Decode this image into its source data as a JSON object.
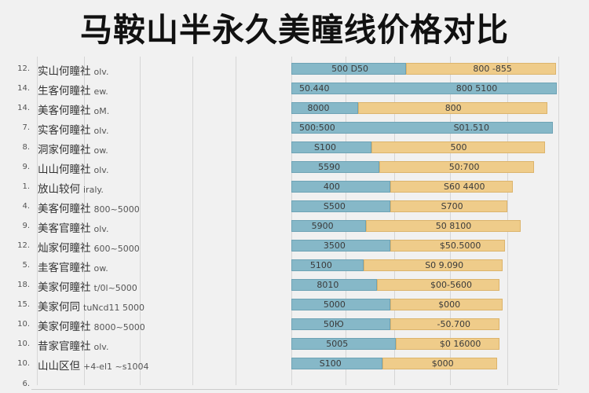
{
  "title": "马鞍山半永久美瞳线价格对比",
  "chart_data": {
    "type": "bar",
    "orientation": "horizontal",
    "stacked": true,
    "grid": true,
    "colors": {
      "segment_a": "#86b8c8",
      "segment_b": "#efcc8a"
    },
    "value_unit": "percent of track",
    "rows": [
      {
        "num": "12.",
        "name": "实山何瞳社",
        "suffix": "olv.",
        "a_pct": 43,
        "total_pct": 99,
        "a_label": "500 D50",
        "b_label": "800 -855"
      },
      {
        "num": "14.",
        "name": "生客何瞳社",
        "suffix": "ew.",
        "a_pct": 99.5,
        "total_pct": 99.5,
        "a_label": "50.440",
        "b_label": "800 5100"
      },
      {
        "num": "14.",
        "name": "美客何瞳社",
        "suffix": "oM.",
        "a_pct": 25,
        "total_pct": 96,
        "a_label": "8000",
        "b_label": "800"
      },
      {
        "num": "7.",
        "name": "实客何瞳社",
        "suffix": "olv.",
        "a_pct": 98,
        "total_pct": 98,
        "a_label": "500:500",
        "b_label": "S01.510"
      },
      {
        "num": "8.",
        "name": "洞家何瞳社",
        "suffix": "ow.",
        "a_pct": 30,
        "total_pct": 95,
        "a_label": "S100",
        "b_label": "500"
      },
      {
        "num": "9.",
        "name": "山山何瞳社",
        "suffix": "olv.",
        "a_pct": 33,
        "total_pct": 91,
        "a_label": "5590",
        "b_label": "50:700"
      },
      {
        "num": "1.",
        "name": "放山较何",
        "suffix": "iraly.",
        "a_pct": 37,
        "total_pct": 83,
        "a_label": "400",
        "b_label": "S60 4400"
      },
      {
        "num": "4.",
        "name": "美客何瞳社",
        "suffix": "800~5000",
        "a_pct": 37,
        "total_pct": 81,
        "a_label": "S500",
        "b_label": "S700"
      },
      {
        "num": "9.",
        "name": "美客官瞳社",
        "suffix": "olv.",
        "a_pct": 28,
        "total_pct": 86,
        "a_label": "5900",
        "b_label": "50 8100"
      },
      {
        "num": "12.",
        "name": "灿家何瞳社",
        "suffix": "600~5000",
        "a_pct": 37,
        "total_pct": 80,
        "a_label": "3500",
        "b_label": "$50.5000"
      },
      {
        "num": "5.",
        "name": "圭客官瞳社",
        "suffix": "ow.",
        "a_pct": 27,
        "total_pct": 79,
        "a_label": "5100",
        "b_label": "S0 9.090"
      },
      {
        "num": "18.",
        "name": "美家何瞳社",
        "suffix": "t/0l~5000",
        "a_pct": 32,
        "total_pct": 78,
        "a_label": "8010",
        "b_label": "$00-5600"
      },
      {
        "num": "15.",
        "name": "美家何同",
        "suffix": "tuNcd11 5000",
        "a_pct": 37,
        "total_pct": 79,
        "a_label": "5000",
        "b_label": "$000"
      },
      {
        "num": "10.",
        "name": "美家何瞳社",
        "suffix": "8000~5000",
        "a_pct": 37,
        "total_pct": 78,
        "a_label": "50Ю",
        "b_label": "-50.700"
      },
      {
        "num": "10.",
        "name": "昔家官瞳社",
        "suffix": "olv.",
        "a_pct": 39,
        "total_pct": 78,
        "a_label": "5005",
        "b_label": "$0 16000"
      },
      {
        "num": "10.",
        "name": "山山区但",
        "suffix": "+4-el1 ~s1004",
        "a_pct": 34,
        "total_pct": 77,
        "a_label": "S100",
        "b_label": "$000"
      }
    ],
    "trailing_num": "6."
  }
}
